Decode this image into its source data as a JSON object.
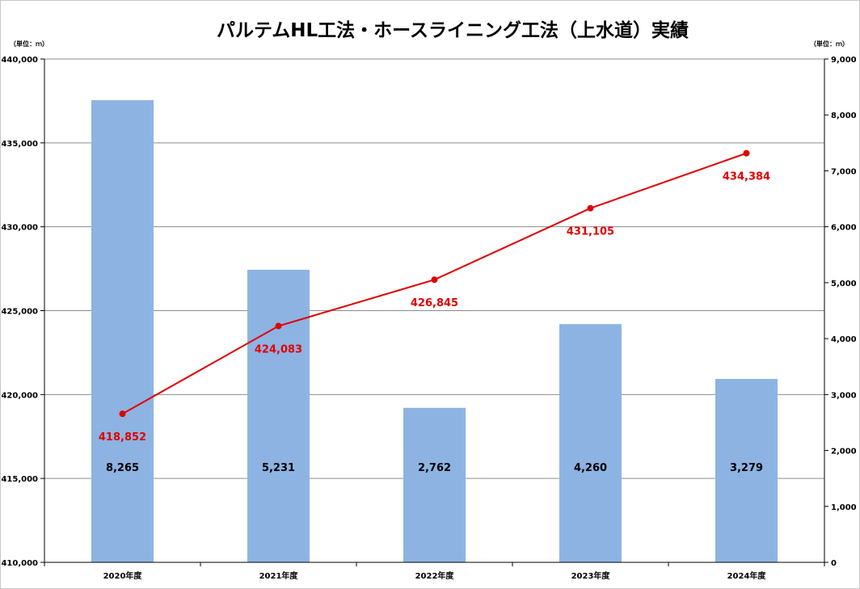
{
  "chart_data": {
    "type": "bar+line",
    "title": "パルテムHL工法・ホースライニング工法（上水道）実績",
    "left_unit_label": "（単位：ｍ）",
    "right_unit_label": "（単位：ｍ）",
    "categories": [
      "2020年度",
      "2021年度",
      "2022年度",
      "2023年度",
      "2024年度"
    ],
    "bar_series": {
      "axis": "right",
      "color": "#8db3e2",
      "values": [
        8265,
        5231,
        2762,
        4260,
        3279
      ],
      "labels": [
        "8,265",
        "5,231",
        "2,762",
        "4,260",
        "3,279"
      ]
    },
    "line_series": {
      "axis": "left",
      "color": "#e00000",
      "values": [
        418852,
        424083,
        426845,
        431105,
        434384
      ],
      "labels": [
        "418,852",
        "424,083",
        "426,845",
        "431,105",
        "434,384"
      ]
    },
    "left_axis": {
      "ylim": [
        410000,
        440000
      ],
      "ticks": [
        "410,000",
        "415,000",
        "420,000",
        "425,000",
        "430,000",
        "435,000",
        "440,000"
      ]
    },
    "right_axis": {
      "ylim": [
        0,
        9000
      ],
      "ticks": [
        "0",
        "1,000",
        "2,000",
        "3,000",
        "4,000",
        "5,000",
        "6,000",
        "7,000",
        "8,000",
        "9,000"
      ]
    },
    "grid": true,
    "legend": "none"
  }
}
